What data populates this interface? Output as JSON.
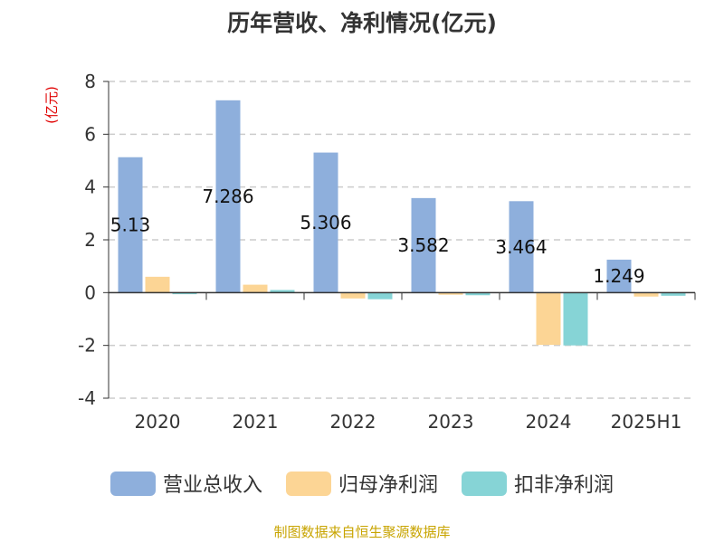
{
  "chart_data": {
    "type": "bar",
    "title": "历年营收、净利情况(亿元)",
    "ylabel": "(亿元)",
    "xlabel": "",
    "categories": [
      "2020",
      "2021",
      "2022",
      "2023",
      "2024",
      "2025H1"
    ],
    "ylim": [
      -4,
      8
    ],
    "yticks": [
      -4,
      -2,
      0,
      2,
      4,
      6,
      8
    ],
    "grid": true,
    "legend_position": "bottom",
    "series": [
      {
        "name": "营业总收入",
        "color": "#8eafdc",
        "values": [
          5.13,
          7.286,
          5.306,
          3.582,
          3.464,
          1.249
        ],
        "data_labels": [
          "5.13",
          "7.286",
          "5.306",
          "3.582",
          "3.464",
          "1.249"
        ]
      },
      {
        "name": "归母净利润",
        "color": "#fcd595",
        "values": [
          0.6,
          0.3,
          -0.22,
          -0.08,
          -1.98,
          -0.15
        ]
      },
      {
        "name": "扣非净利润",
        "color": "#86d4d6",
        "values": [
          -0.06,
          0.1,
          -0.25,
          -0.1,
          -2.0,
          -0.12
        ]
      }
    ]
  },
  "source": "制图数据来自恒生聚源数据库"
}
